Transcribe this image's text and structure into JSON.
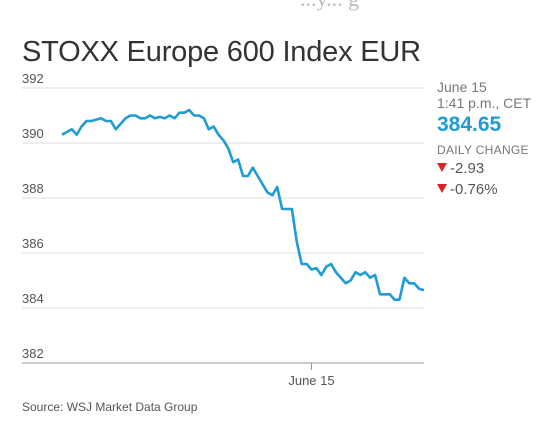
{
  "header": {
    "clipped_text": "...y... g",
    "title": "STOXX Europe 600 Index EUR"
  },
  "side_panel": {
    "date": "June 15",
    "time": "1:41 p.m., CET",
    "value": "384.65",
    "daily_change_label": "DAILY CHANGE",
    "change_abs": "-2.93",
    "change_pct": "-0.76%",
    "change_color": "#e02020",
    "value_color": "#1f9bd6"
  },
  "source": "Source: WSJ Market Data Group",
  "chart_data": {
    "type": "line",
    "title": "STOXX Europe 600 Index EUR",
    "ylim": [
      382,
      392
    ],
    "yticks": [
      "392",
      "390",
      "388",
      "386",
      "384",
      "382"
    ],
    "xtick_labels": [
      "June 15"
    ],
    "xtick_index": 51,
    "grid": true,
    "line_color": "#1f9bd6",
    "series": [
      {
        "values": [
          390.3,
          390.4,
          390.5,
          390.3,
          390.6,
          390.8,
          390.8,
          390.85,
          390.9,
          390.8,
          390.8,
          390.5,
          390.7,
          390.9,
          391.0,
          391.0,
          390.9,
          390.9,
          391.0,
          390.9,
          390.95,
          390.9,
          391.0,
          390.9,
          391.1,
          391.1,
          391.2,
          391.0,
          391.0,
          390.9,
          390.5,
          390.6,
          390.3,
          390.1,
          389.8,
          389.3,
          389.4,
          388.8,
          388.8,
          389.1,
          388.8,
          388.5,
          388.2,
          388.1,
          388.4,
          387.6,
          387.6,
          387.6,
          386.4,
          385.6,
          385.6,
          385.4,
          385.45,
          385.2,
          385.5,
          385.6,
          385.3,
          385.1,
          384.9,
          385.0,
          385.3,
          385.2,
          385.3,
          385.1,
          385.2,
          384.5,
          384.5,
          384.5,
          384.3,
          384.3,
          385.1,
          384.9,
          384.9,
          384.7,
          384.65
        ]
      }
    ]
  }
}
